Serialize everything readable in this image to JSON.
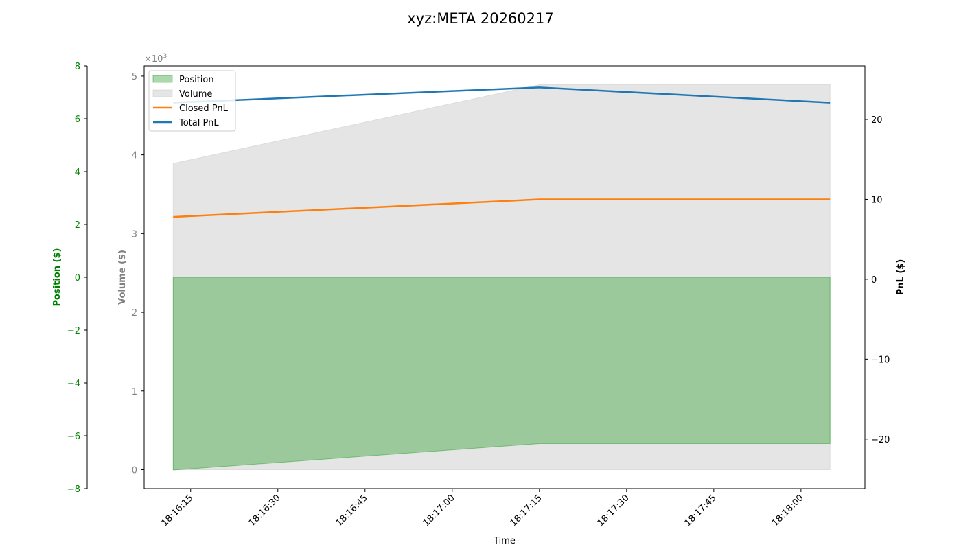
{
  "chart_data": {
    "type": "area",
    "title": "xyz:META 20260217",
    "xlabel": "Time",
    "x": [
      "18:16:12",
      "18:17:15",
      "18:18:05"
    ],
    "xlim": [
      "18:16:07",
      "18:18:11"
    ],
    "x_ticks": [
      "18:16:15",
      "18:16:30",
      "18:16:45",
      "18:17:00",
      "18:17:15",
      "18:17:30",
      "18:17:45",
      "18:18:00"
    ],
    "grid": false,
    "legend_position": "top-left",
    "axes": {
      "position": {
        "label": "Position ($)",
        "ylim": [
          -8,
          8
        ],
        "ticks": [
          -8,
          -6,
          -4,
          -2,
          0,
          2,
          4,
          6,
          8
        ],
        "tick_labels": [
          "−8",
          "−6",
          "−4",
          "−2",
          "0",
          "2",
          "4",
          "6",
          "8"
        ],
        "color": "#008000"
      },
      "volume": {
        "label": "Volume ($)",
        "multiplier": "×10",
        "exponent": "3",
        "ylim": [
          -0.24,
          5.13
        ],
        "ticks": [
          0,
          1,
          2,
          3,
          4,
          5
        ],
        "tick_labels": [
          "0",
          "1",
          "2",
          "3",
          "4",
          "5"
        ],
        "color": "#808080"
      },
      "pnl": {
        "label": "PnL ($)",
        "ylim": [
          -26.2,
          26.7
        ],
        "ticks": [
          -20,
          -10,
          0,
          10,
          20
        ],
        "tick_labels": [
          "−20",
          "−10",
          "0",
          "10",
          "20"
        ],
        "color": "#000000"
      }
    },
    "series": [
      {
        "name": "Position",
        "kind": "area",
        "axis": "position",
        "values": [
          -7.3,
          -6.3,
          -6.3
        ],
        "color": "#2ca02c"
      },
      {
        "name": "Volume",
        "kind": "area",
        "axis": "volume",
        "values": [
          3.89,
          4.89,
          4.89
        ],
        "color": "#d3d3d3"
      },
      {
        "name": "Closed PnL",
        "kind": "line",
        "axis": "pnl",
        "values": [
          7.8,
          10.0,
          10.0
        ],
        "color": "#ff7f0e"
      },
      {
        "name": "Total PnL",
        "kind": "line",
        "axis": "pnl",
        "values": [
          22.1,
          24.0,
          22.1
        ],
        "color": "#1f77b4"
      }
    ]
  }
}
